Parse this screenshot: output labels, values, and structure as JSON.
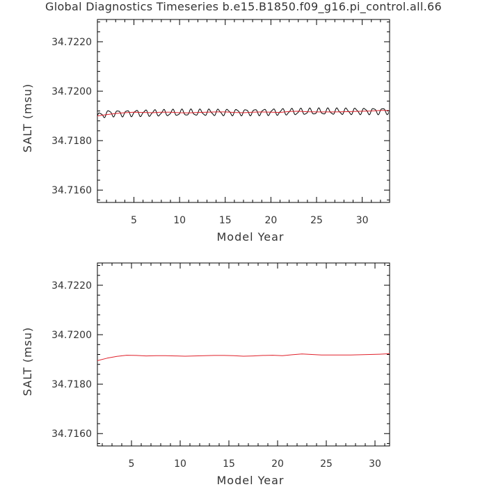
{
  "title": "Global Diagnostics Timeseries b.e15.B1850.f09_g16.pi_control.all.66",
  "chart_data": [
    {
      "type": "line",
      "xlabel": "Model Year",
      "ylabel": "SALT (msu)",
      "xlim": [
        1,
        33
      ],
      "ylim": [
        34.7155,
        34.7229
      ],
      "xticks": [
        "5",
        "10",
        "15",
        "20",
        "25",
        "30"
      ],
      "xtick_values": [
        5,
        10,
        15,
        20,
        25,
        30
      ],
      "yticks": [
        "34.7160",
        "34.7180",
        "34.7200",
        "34.7220"
      ],
      "ytick_values": [
        34.716,
        34.718,
        34.72,
        34.722
      ],
      "grid": false,
      "series": [
        {
          "color": "#000000",
          "kind": "monthly",
          "x_range": [
            1,
            32.9
          ],
          "mean_start": 34.7191,
          "mean_end": 34.7192,
          "amplitude": 0.00012,
          "period": 1
        },
        {
          "color": "#e0202a",
          "kind": "annual",
          "x": [
            1,
            2,
            3,
            4,
            5,
            6,
            7,
            8,
            9,
            10,
            11,
            12,
            13,
            14,
            15,
            16,
            17,
            18,
            19,
            20,
            21,
            22,
            23,
            24,
            25,
            26,
            27,
            28,
            29,
            30,
            31,
            32,
            32.9
          ],
          "values": [
            34.719,
            34.71905,
            34.7191,
            34.71913,
            34.71915,
            34.71914,
            34.71913,
            34.71915,
            34.71915,
            34.71913,
            34.71912,
            34.71914,
            34.71915,
            34.71916,
            34.71916,
            34.71914,
            34.71913,
            34.71915,
            34.71916,
            34.71915,
            34.71914,
            34.71918,
            34.71919,
            34.71917,
            34.71916,
            34.71916,
            34.71916,
            34.71917,
            34.71918,
            34.71919,
            34.7192,
            34.71922,
            34.71922
          ]
        }
      ]
    },
    {
      "type": "line",
      "xlabel": "Model Year",
      "ylabel": "SALT (msu)",
      "xlim": [
        1.5,
        31.5
      ],
      "ylim": [
        34.7155,
        34.7229
      ],
      "xticks": [
        "5",
        "10",
        "15",
        "20",
        "25",
        "30"
      ],
      "xtick_values": [
        5,
        10,
        15,
        20,
        25,
        30
      ],
      "yticks": [
        "34.7160",
        "34.7180",
        "34.7200",
        "34.7220"
      ],
      "ytick_values": [
        34.716,
        34.718,
        34.72,
        34.722
      ],
      "grid": false,
      "series": [
        {
          "color": "#e0202a",
          "kind": "annual",
          "x": [
            1.5,
            2.5,
            3.5,
            4.5,
            5.5,
            6.5,
            7.5,
            8.5,
            9.5,
            10.5,
            11.5,
            12.5,
            13.5,
            14.5,
            15.5,
            16.5,
            17.5,
            18.5,
            19.5,
            20.5,
            21.5,
            22.5,
            23.5,
            24.5,
            25.5,
            26.5,
            27.5,
            28.5,
            29.5,
            30.5,
            31.5
          ],
          "values": [
            34.71895,
            34.71905,
            34.71912,
            34.71917,
            34.71916,
            34.71914,
            34.71915,
            34.71915,
            34.71914,
            34.71913,
            34.71914,
            34.71915,
            34.71916,
            34.71916,
            34.71915,
            34.71913,
            34.71914,
            34.71916,
            34.71917,
            34.71915,
            34.71919,
            34.71922,
            34.7192,
            34.71918,
            34.71918,
            34.71918,
            34.71918,
            34.71919,
            34.7192,
            34.71921,
            34.71923
          ]
        }
      ]
    }
  ]
}
